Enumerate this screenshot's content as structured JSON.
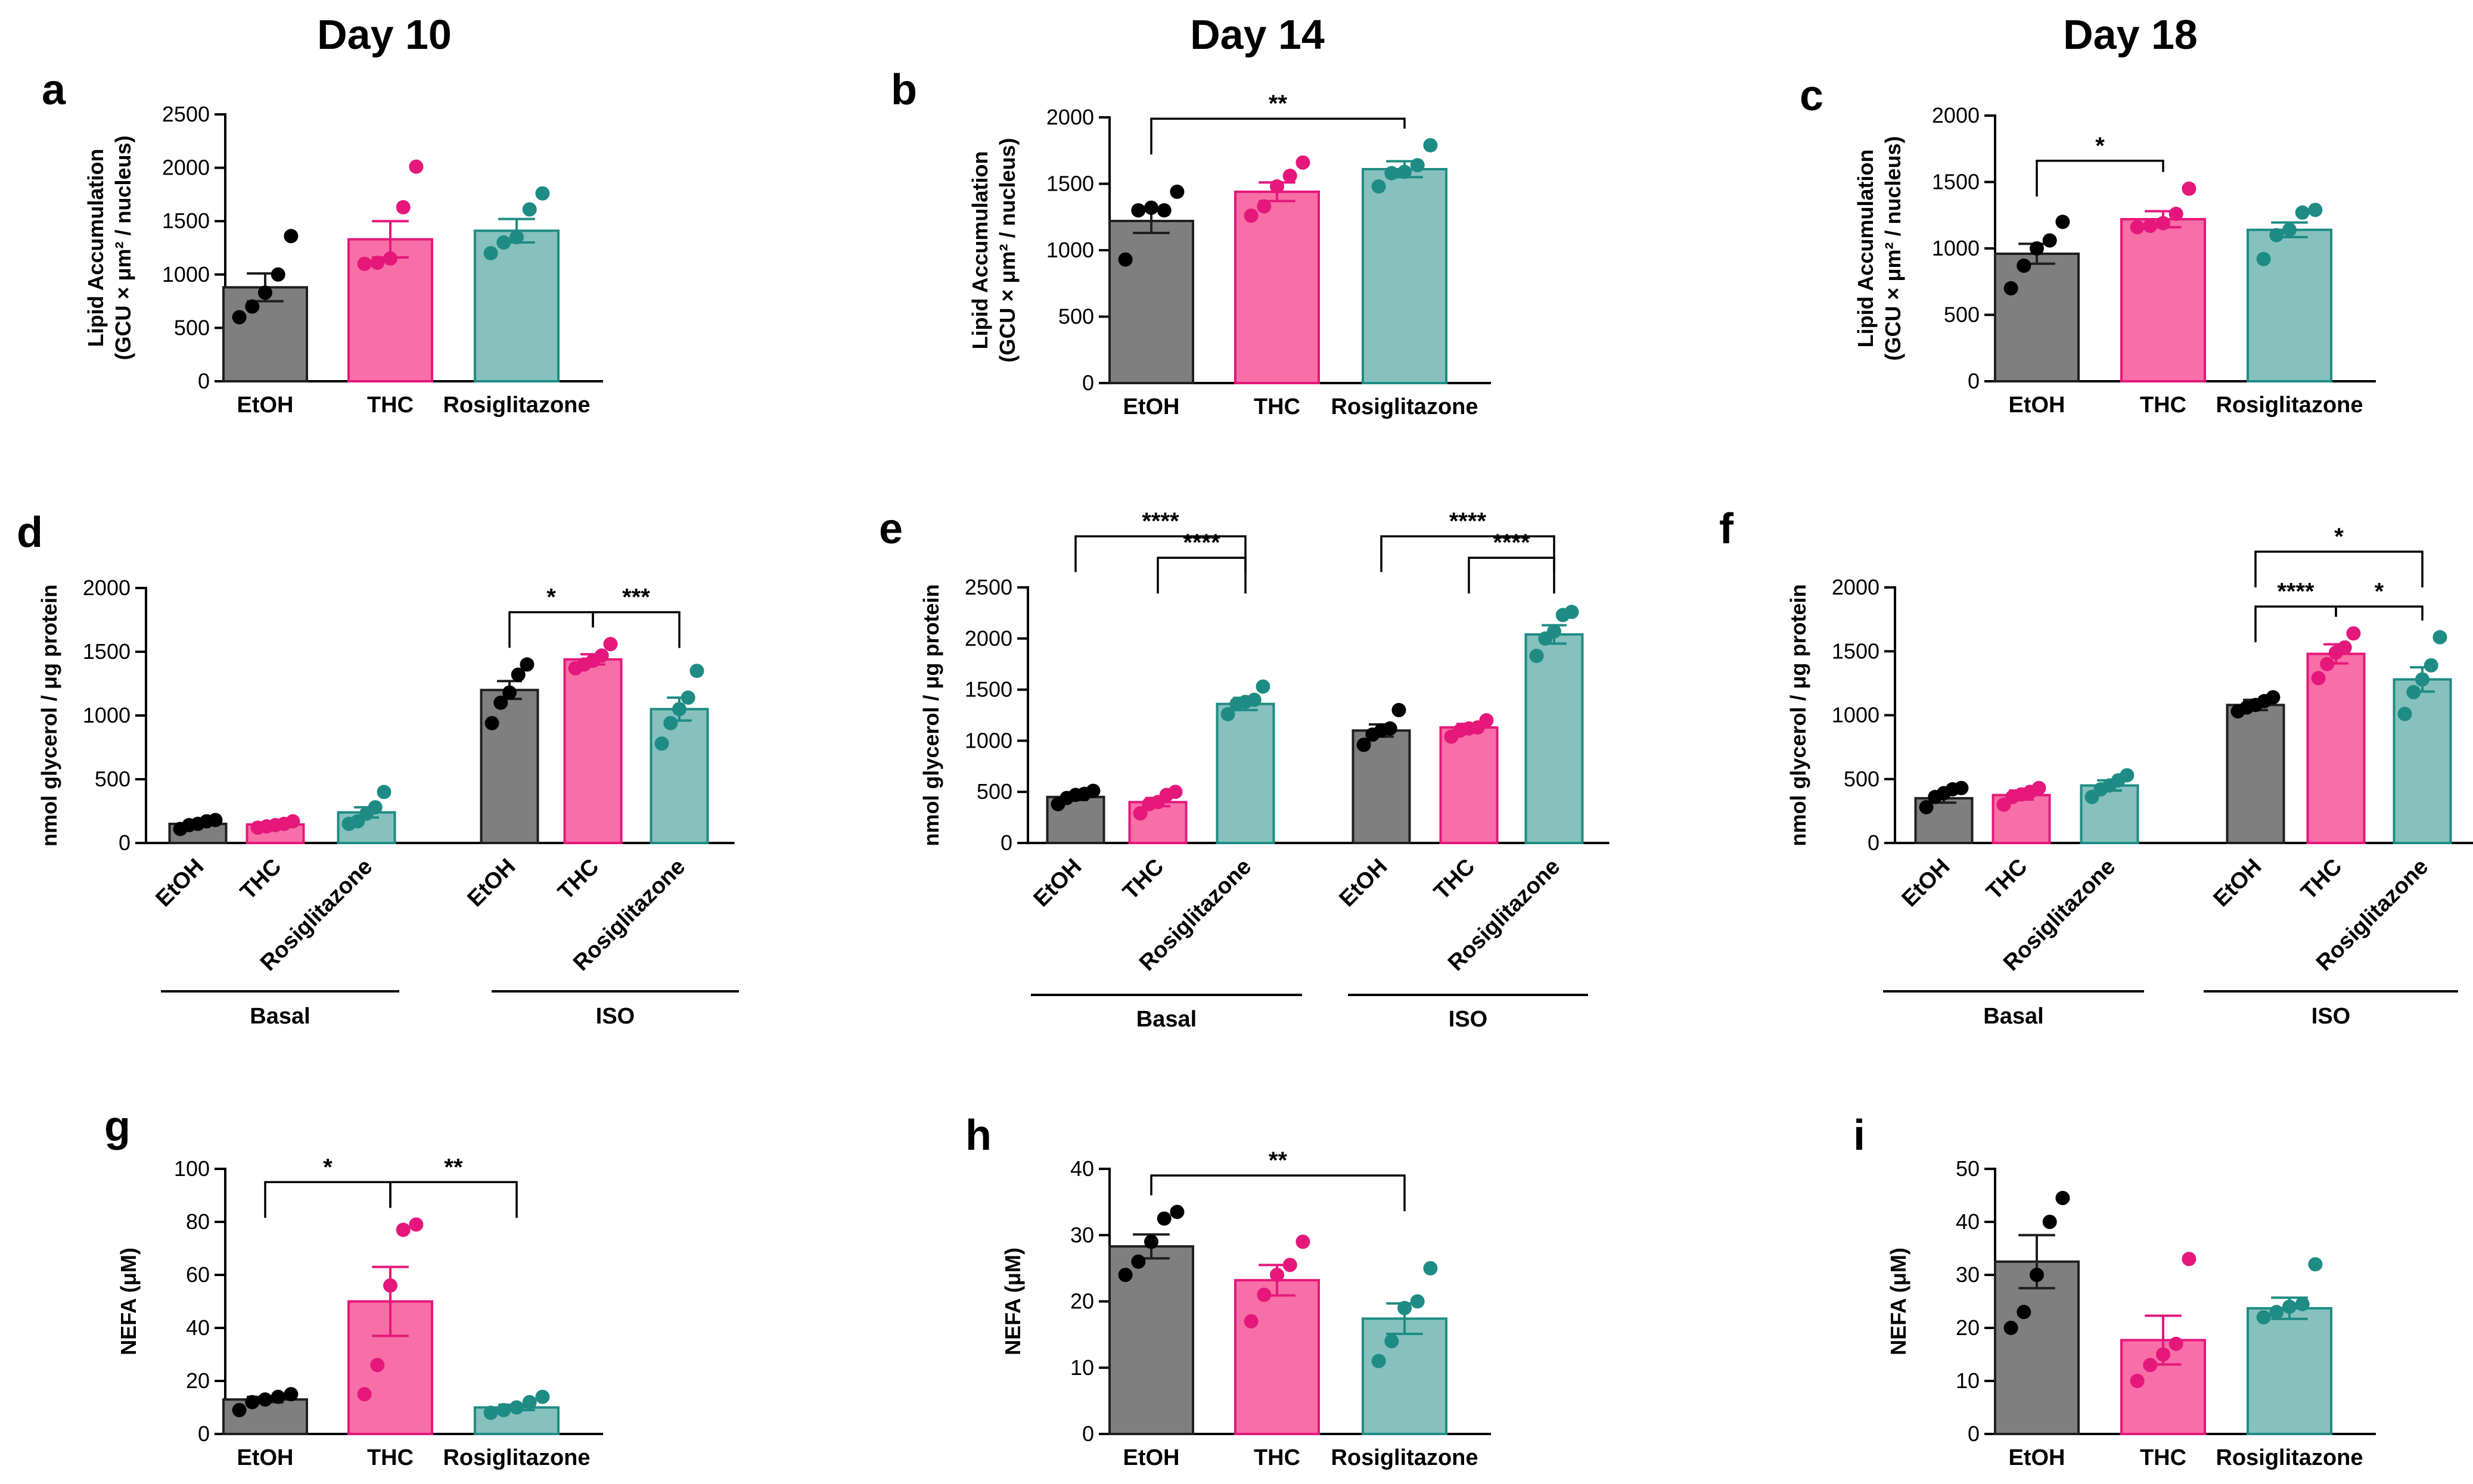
{
  "colors": {
    "EtOH": "#7f7f7f",
    "THC": "#f76fa6",
    "Rosiglitazone": "#86c1bd"
  },
  "dot_colors": {
    "EtOH": "#000000",
    "THC": "#e5177b",
    "Rosiglitazone": "#1e8c84"
  },
  "edge_colors": {
    "EtOH": "#1f1f1f",
    "THC": "#e5177b",
    "Rosiglitazone": "#1e8c84"
  },
  "day_titles": [
    "Day 10",
    "Day 14",
    "Day 18"
  ],
  "chart_data": [
    {
      "id": "a",
      "type": "bar",
      "ylabel": [
        "Lipid Accumulation",
        "(GCU × μm² / nucleus)"
      ],
      "ylim": [
        0,
        2500
      ],
      "yticks": [
        0,
        500,
        1000,
        1500,
        2000,
        2500
      ],
      "categories": [
        "EtOH",
        "THC",
        "Rosiglitazone"
      ],
      "values": [
        880,
        1330,
        1410
      ],
      "sem": [
        130,
        170,
        110
      ],
      "points": [
        [
          600,
          700,
          830,
          1000,
          1360
        ],
        [
          1100,
          1110,
          1150,
          1630,
          2010
        ],
        [
          1200,
          1300,
          1350,
          1610,
          1760
        ]
      ],
      "sig": []
    },
    {
      "id": "b",
      "type": "bar",
      "ylabel": [
        "Lipid Accumulation",
        "(GCU × μm² / nucleus)"
      ],
      "ylim": [
        0,
        2000
      ],
      "yticks": [
        0,
        500,
        1000,
        1500,
        2000
      ],
      "categories": [
        "EtOH",
        "THC",
        "Rosiglitazone"
      ],
      "values": [
        1220,
        1440,
        1610
      ],
      "sem": [
        90,
        70,
        60
      ],
      "points": [
        [
          930,
          1300,
          1320,
          1300,
          1440
        ],
        [
          1260,
          1330,
          1480,
          1560,
          1660
        ],
        [
          1480,
          1580,
          1590,
          1640,
          1790
        ]
      ],
      "sig": [
        {
          "from": 0,
          "to": 2,
          "label": "**",
          "y": 1990
        }
      ]
    },
    {
      "id": "c",
      "type": "bar",
      "ylabel": [
        "Lipid Accumulation",
        "(GCU × μm² / nucleus)"
      ],
      "ylim": [
        0,
        2000
      ],
      "yticks": [
        0,
        500,
        1000,
        1500,
        2000
      ],
      "categories": [
        "EtOH",
        "THC",
        "Rosiglitazone"
      ],
      "values": [
        960,
        1220,
        1140
      ],
      "sem": [
        75,
        60,
        55
      ],
      "points": [
        [
          700,
          870,
          1000,
          1060,
          1200
        ],
        [
          1160,
          1170,
          1190,
          1260,
          1450
        ],
        [
          920,
          1100,
          1140,
          1270,
          1290
        ]
      ],
      "sig": [
        {
          "from": 0,
          "to": 1,
          "label": "*",
          "y": 1660
        }
      ]
    },
    {
      "id": "d",
      "type": "bar",
      "ylabel": [
        "nmol glycerol / μg protein"
      ],
      "ylim": [
        0,
        2000
      ],
      "yticks": [
        0,
        500,
        1000,
        1500,
        2000
      ],
      "categories": [
        "EtOH",
        "THC",
        "Rosiglitazone",
        "EtOH",
        "THC",
        "Rosiglitazone"
      ],
      "groups": [
        "Basal",
        "ISO"
      ],
      "values": [
        150,
        145,
        240,
        1200,
        1440,
        1050
      ],
      "sem": [
        15,
        15,
        40,
        70,
        40,
        90
      ],
      "points": [
        [
          110,
          140,
          150,
          170,
          180
        ],
        [
          120,
          130,
          140,
          150,
          170
        ],
        [
          150,
          170,
          230,
          280,
          400
        ],
        [
          940,
          1100,
          1180,
          1320,
          1400
        ],
        [
          1370,
          1400,
          1430,
          1470,
          1560
        ],
        [
          780,
          940,
          1050,
          1140,
          1350
        ]
      ],
      "sig": [
        {
          "from": 3,
          "to": 4,
          "label": "*",
          "y": 1810
        },
        {
          "from": 4,
          "to": 5,
          "label": "***",
          "y": 1810
        }
      ]
    },
    {
      "id": "e",
      "type": "bar",
      "ylabel": [
        "nmol glycerol / μg protein"
      ],
      "ylim": [
        0,
        2500
      ],
      "yticks": [
        0,
        500,
        1000,
        1500,
        2000,
        2500
      ],
      "categories": [
        "EtOH",
        "THC",
        "Rosiglitazone",
        "EtOH",
        "THC",
        "Rosiglitazone"
      ],
      "groups": [
        "Basal",
        "ISO"
      ],
      "values": [
        450,
        400,
        1360,
        1100,
        1130,
        2040
      ],
      "sem": [
        30,
        40,
        60,
        60,
        35,
        90
      ],
      "points": [
        [
          380,
          440,
          470,
          480,
          510
        ],
        [
          290,
          380,
          400,
          470,
          500
        ],
        [
          1260,
          1360,
          1380,
          1400,
          1530
        ],
        [
          960,
          1060,
          1100,
          1120,
          1300
        ],
        [
          1040,
          1100,
          1120,
          1130,
          1200
        ],
        [
          1830,
          2000,
          2070,
          2230,
          2260
        ]
      ],
      "sig": [
        {
          "from": 1,
          "to": 2,
          "label": "****",
          "y": 2790
        },
        {
          "from": 0,
          "to": 2,
          "label": "****",
          "y": 3000
        },
        {
          "from": 4,
          "to": 5,
          "label": "****",
          "y": 2790
        },
        {
          "from": 3,
          "to": 5,
          "label": "****",
          "y": 3000
        }
      ]
    },
    {
      "id": "f",
      "type": "bar",
      "ylabel": [
        "nmol glycerol / μg protein"
      ],
      "ylim": [
        0,
        2000
      ],
      "yticks": [
        0,
        500,
        1000,
        1500,
        2000
      ],
      "categories": [
        "EtOH",
        "THC",
        "Rosiglitazone",
        "EtOH",
        "THC",
        "Rosiglitazone"
      ],
      "groups": [
        "Basal",
        "ISO"
      ],
      "values": [
        350,
        375,
        450,
        1080,
        1480,
        1280
      ],
      "sem": [
        35,
        35,
        40,
        40,
        75,
        95
      ],
      "points": [
        [
          280,
          360,
          390,
          420,
          430
        ],
        [
          300,
          360,
          380,
          400,
          430
        ],
        [
          360,
          420,
          450,
          490,
          530
        ],
        [
          1030,
          1060,
          1080,
          1110,
          1140
        ],
        [
          1290,
          1400,
          1490,
          1530,
          1640
        ],
        [
          1010,
          1180,
          1280,
          1390,
          1610
        ]
      ],
      "sig": [
        {
          "from": 3,
          "to": 4,
          "label": "****",
          "y": 1850
        },
        {
          "from": 4,
          "to": 5,
          "label": "*",
          "y": 1850
        },
        {
          "from": 3,
          "to": 5,
          "label": "*",
          "y": 2280
        }
      ]
    },
    {
      "id": "g",
      "type": "bar",
      "ylabel": [
        "NEFA (μM)"
      ],
      "ylim": [
        0,
        100
      ],
      "yticks": [
        0,
        20,
        40,
        60,
        80,
        100
      ],
      "categories": [
        "EtOH",
        "THC",
        "Rosiglitazone"
      ],
      "values": [
        13,
        50,
        10
      ],
      "sem": [
        1,
        13,
        1
      ],
      "points": [
        [
          9,
          12,
          13,
          14,
          15
        ],
        [
          15,
          26,
          56,
          77,
          79
        ],
        [
          8,
          9,
          10,
          12,
          14
        ]
      ],
      "sig": [
        {
          "from": 0,
          "to": 1,
          "label": "*",
          "y": 95
        },
        {
          "from": 1,
          "to": 2,
          "label": "**",
          "y": 95
        }
      ]
    },
    {
      "id": "h",
      "type": "bar",
      "ylabel": [
        "NEFA (μM)"
      ],
      "ylim": [
        0,
        40
      ],
      "yticks": [
        0,
        10,
        20,
        30,
        40
      ],
      "categories": [
        "EtOH",
        "THC",
        "Rosiglitazone"
      ],
      "values": [
        28.3,
        23.2,
        17.4
      ],
      "sem": [
        1.8,
        2.3,
        2.3
      ],
      "points": [
        [
          24,
          26,
          29,
          32.5,
          33.5
        ],
        [
          17,
          21,
          24,
          25.5,
          29
        ],
        [
          11,
          14,
          19,
          20,
          25
        ]
      ],
      "sig": [
        {
          "from": 0,
          "to": 2,
          "label": "**",
          "y": 39
        }
      ]
    },
    {
      "id": "i",
      "type": "bar",
      "ylabel": [
        "NEFA (μM)"
      ],
      "ylim": [
        0,
        50
      ],
      "yticks": [
        0,
        10,
        20,
        30,
        40,
        50
      ],
      "categories": [
        "EtOH",
        "THC",
        "Rosiglitazone"
      ],
      "values": [
        32.5,
        17.7,
        23.7
      ],
      "sem": [
        5,
        4.6,
        2
      ],
      "points": [
        [
          20,
          23,
          30,
          40,
          44.5
        ],
        [
          10,
          13,
          15,
          17,
          33
        ],
        [
          22,
          23,
          24,
          24.5,
          32
        ]
      ],
      "sig": []
    }
  ]
}
